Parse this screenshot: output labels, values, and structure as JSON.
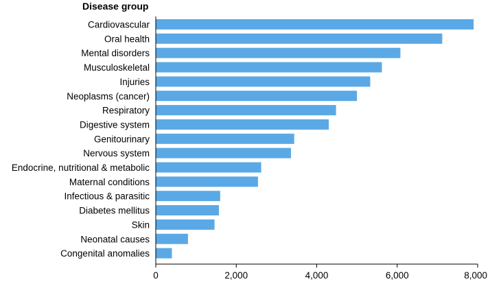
{
  "chart_data": {
    "type": "bar",
    "orientation": "horizontal",
    "ylabel": "Disease group",
    "xlabel": "",
    "categories": [
      "Cardiovascular",
      "Oral health",
      "Mental disorders ",
      "Musculoskeletal",
      "Injuries",
      "Neoplasms (cancer)",
      "Respiratory",
      "Digestive system",
      "Genitourinary",
      "Nervous system",
      "Endocrine, nutritional & metabolic",
      "Maternal conditions",
      "Infectious & parasitic",
      "Diabetes mellitus",
      "Skin",
      "Neonatal causes",
      "Congenital anomalies"
    ],
    "values": [
      7900,
      7120,
      6080,
      5620,
      5330,
      5000,
      4480,
      4300,
      3440,
      3360,
      2620,
      2540,
      1600,
      1570,
      1460,
      800,
      400
    ],
    "xlim": [
      0,
      8000
    ],
    "xticks": [
      0,
      2000,
      4000,
      6000,
      8000
    ],
    "xtick_labels": [
      "0",
      "2,000",
      "4,000",
      "6,000",
      "8,000"
    ],
    "grid": false,
    "bar_color": "#5aa9e6"
  }
}
